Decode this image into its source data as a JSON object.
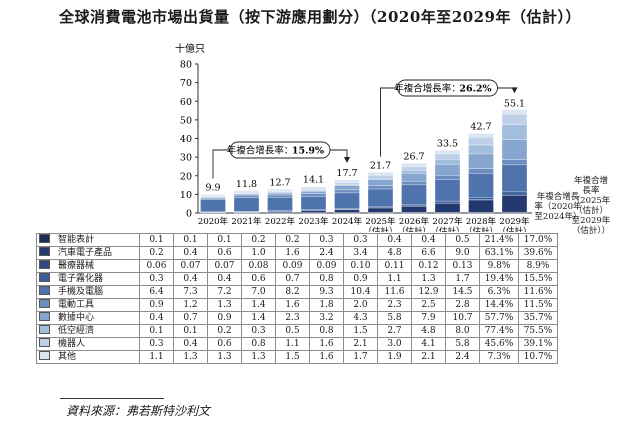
{
  "title": "全球消費電池市場出貨量（按下游應用劃分）（2020年至2029年（估計））",
  "source": "資料來源：弗若斯特沙利文",
  "cagr_headers": [
    "年複合增長率（2020年至2024年）",
    "年複合增長率（2025年（估計）至2029年（估計））"
  ],
  "colors": [
    "#1b2b57",
    "#23386e",
    "#2e4a85",
    "#3b5e9b",
    "#4f74ad",
    "#6b8dc0",
    "#87a6cf",
    "#a3bddd",
    "#bfd1e8",
    "#dce6f3"
  ],
  "chart_data": {
    "type": "bar",
    "stacked": true,
    "title": "全球消費電池市場出貨量（按下游應用劃分）（2020年至2029年（估計））",
    "ylabel": "十億只",
    "ylim": [
      0,
      80
    ],
    "yticks": [
      0,
      10,
      20,
      30,
      40,
      50,
      60,
      70,
      80
    ],
    "grid": false,
    "categories": [
      "2020年",
      "2021年",
      "2022年",
      "2023年",
      "2024年",
      "2025年（估計）",
      "2026年（估計）",
      "2027年（估計）",
      "2028年（估計）",
      "2029年（估計）"
    ],
    "totals": [
      9.9,
      11.8,
      12.7,
      14.1,
      17.7,
      21.7,
      26.7,
      33.5,
      42.7,
      55.1
    ],
    "annotations": [
      {
        "text": "年複合增長率：",
        "value": "15.9%",
        "from": 0,
        "to": 4
      },
      {
        "text": "年複合增長率：",
        "value": "26.2%",
        "from": 5,
        "to": 9
      }
    ],
    "series": [
      {
        "name": "智能表計",
        "values": [
          0.1,
          0.1,
          0.1,
          0.2,
          0.2,
          0.3,
          0.3,
          0.4,
          0.4,
          0.5
        ],
        "cagr": [
          "21.4%",
          "17.0%"
        ]
      },
      {
        "name": "汽車電子產品",
        "values": [
          0.2,
          0.4,
          0.6,
          1.0,
          1.6,
          2.4,
          3.4,
          4.8,
          6.6,
          9.0
        ],
        "cagr": [
          "63.1%",
          "39.6%"
        ]
      },
      {
        "name": "醫療器械",
        "values": [
          0.06,
          0.07,
          0.07,
          0.08,
          0.09,
          0.09,
          0.1,
          0.11,
          0.12,
          0.13
        ],
        "cagr": [
          "9.8%",
          "8.9%"
        ]
      },
      {
        "name": "電子霧化器",
        "values": [
          0.3,
          0.4,
          0.4,
          0.6,
          0.7,
          0.8,
          0.9,
          1.1,
          1.3,
          1.7
        ],
        "cagr": [
          "19.4%",
          "15.5%"
        ]
      },
      {
        "name": "手機及電腦",
        "values": [
          6.4,
          7.3,
          7.2,
          7.0,
          8.2,
          9.3,
          10.4,
          11.6,
          12.9,
          14.5
        ],
        "cagr": [
          "6.3%",
          "11.6%"
        ]
      },
      {
        "name": "電動工具",
        "values": [
          0.9,
          1.2,
          1.3,
          1.4,
          1.6,
          1.8,
          2.0,
          2.3,
          2.5,
          2.8
        ],
        "cagr": [
          "14.4%",
          "11.5%"
        ]
      },
      {
        "name": "數據中心",
        "values": [
          0.4,
          0.7,
          0.9,
          1.4,
          2.3,
          3.2,
          4.3,
          5.8,
          7.9,
          10.7
        ],
        "cagr": [
          "57.7%",
          "35.7%"
        ]
      },
      {
        "name": "低空經濟",
        "values": [
          0.1,
          0.1,
          0.2,
          0.3,
          0.5,
          0.8,
          1.5,
          2.7,
          4.8,
          8.0
        ],
        "cagr": [
          "77.4%",
          "75.5%"
        ]
      },
      {
        "name": "機器人",
        "values": [
          0.3,
          0.4,
          0.6,
          0.8,
          1.1,
          1.6,
          2.1,
          3.0,
          4.1,
          5.8
        ],
        "cagr": [
          "45.6%",
          "39.1%"
        ]
      },
      {
        "name": "其他",
        "values": [
          1.1,
          1.3,
          1.3,
          1.3,
          1.5,
          1.6,
          1.7,
          1.9,
          2.1,
          2.4
        ],
        "cagr": [
          "7.3%",
          "10.7%"
        ]
      }
    ]
  }
}
